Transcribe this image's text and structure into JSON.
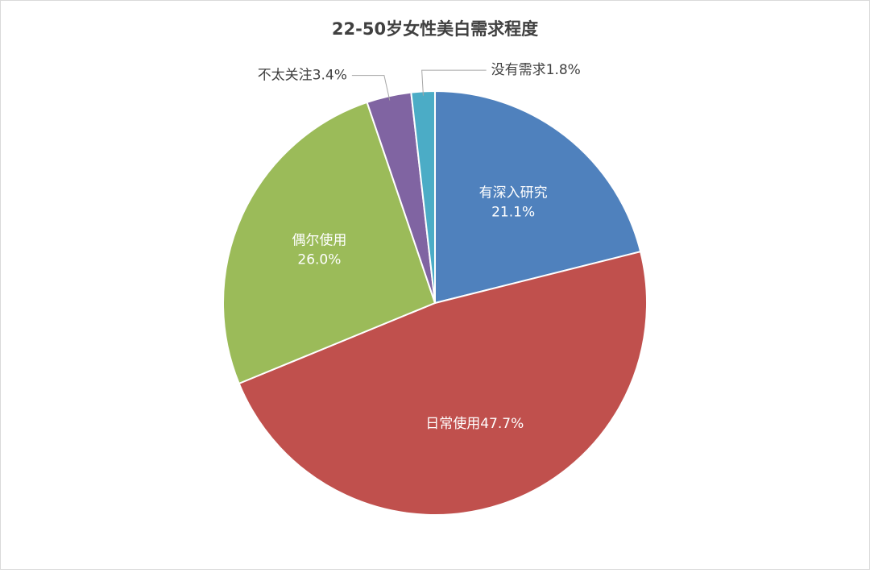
{
  "chart_data": {
    "type": "pie",
    "title": "22-50岁女性美白需求程度",
    "categories": [
      "有深入研究",
      "日常使用",
      "偶尔使用",
      "不太关注",
      "没有需求"
    ],
    "values": [
      21.1,
      47.7,
      26.0,
      3.4,
      1.8
    ],
    "value_labels": [
      "21.1%",
      "47.7%",
      "26.0%",
      "3.4%",
      "1.8%"
    ],
    "colors": [
      "#4f81bd",
      "#c0504d",
      "#9bbb59",
      "#8064a2",
      "#4bacc6"
    ]
  }
}
